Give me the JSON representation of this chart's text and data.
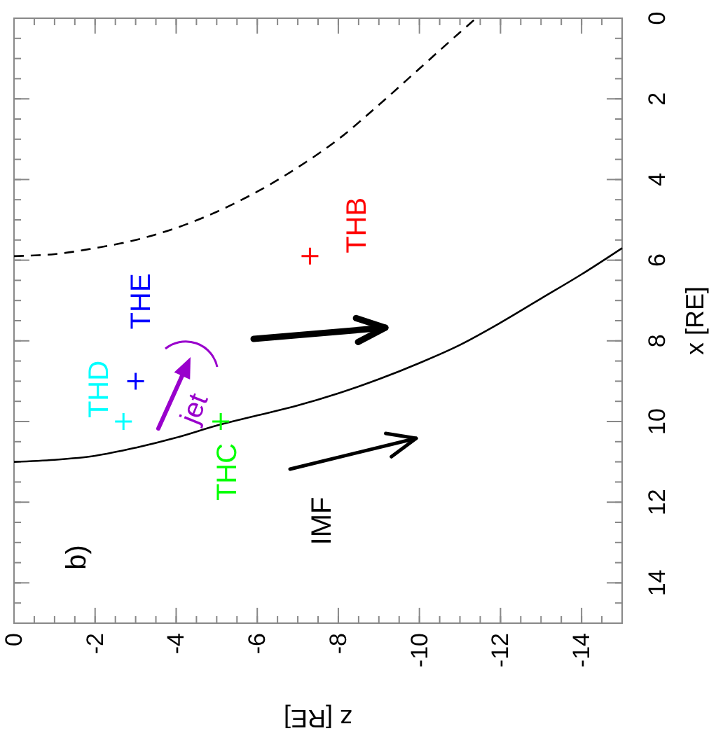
{
  "chart_data": {
    "type": "scatter",
    "xlabel": "z [RE]",
    "ylabel": "x [RE]",
    "xlim": [
      0,
      -15
    ],
    "ylim": [
      15,
      0
    ],
    "xticks": [
      0,
      -2,
      -4,
      -6,
      -8,
      -10,
      -12,
      -14
    ],
    "yticks": [
      0,
      2,
      4,
      6,
      8,
      10,
      12,
      14
    ],
    "marker": "cross",
    "annotations": [
      "b)",
      "IMF",
      "jet"
    ],
    "series": [
      {
        "type": "line",
        "color": "#000000",
        "line_style": "solid",
        "marker": "none",
        "x": [
          0,
          -1,
          -2,
          -3,
          -4,
          -5,
          -6,
          -7,
          -8,
          -9,
          -10,
          -11,
          -12,
          -13,
          -14,
          -15
        ],
        "values": [
          11.0,
          10.95,
          10.85,
          10.65,
          10.4,
          10.1,
          9.85,
          9.6,
          9.3,
          8.95,
          8.55,
          8.1,
          7.55,
          6.95,
          6.35,
          5.7
        ]
      },
      {
        "type": "line",
        "color": "#000000",
        "line_style": "dashed",
        "marker": "none",
        "x": [
          0,
          -1,
          -2,
          -3,
          -4,
          -5,
          -6,
          -7,
          -8,
          -9,
          -10,
          -11,
          -11.4
        ],
        "values": [
          5.9,
          5.85,
          5.7,
          5.5,
          5.2,
          4.8,
          4.3,
          3.7,
          3.0,
          2.15,
          1.25,
          0.35,
          0
        ]
      },
      {
        "name": "THB",
        "color": "#ff0000",
        "x": [
          -7.3
        ],
        "values": [
          5.9
        ]
      },
      {
        "name": "THE",
        "color": "#0000ff",
        "x": [
          -3.0
        ],
        "values": [
          9.0
        ]
      },
      {
        "name": "THD",
        "color": "#00ffff",
        "x": [
          -2.7
        ],
        "values": [
          10.0
        ]
      },
      {
        "name": "THC",
        "color": "#00ff00",
        "x": [
          -5.1
        ],
        "values": [
          10.0
        ]
      }
    ]
  }
}
